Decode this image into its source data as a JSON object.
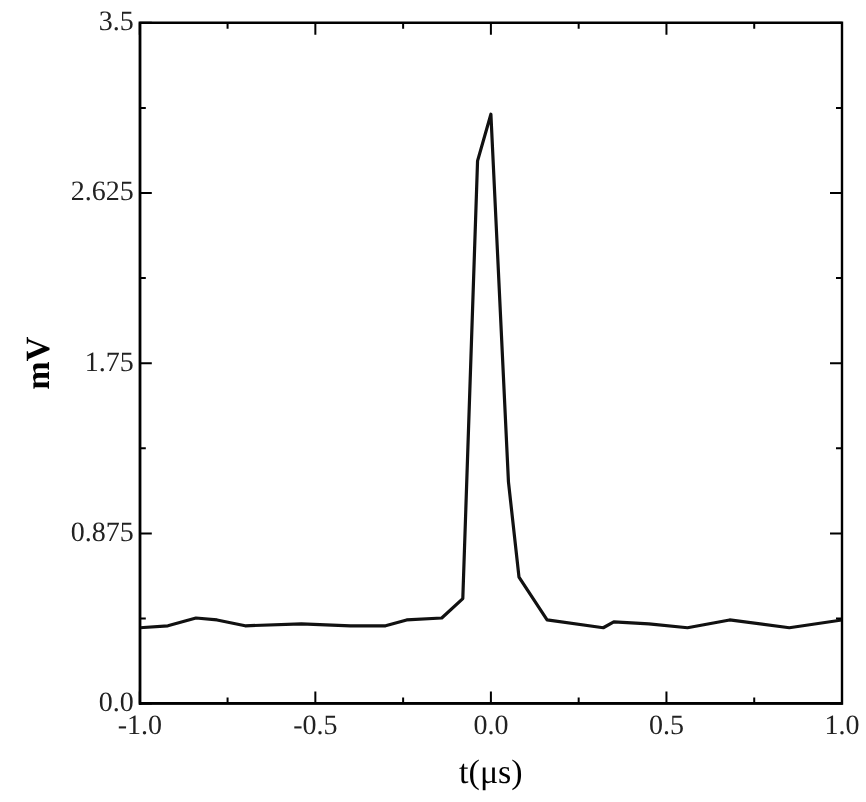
{
  "chart_data": {
    "type": "line",
    "xlabel": "t(μs)",
    "ylabel": "mV",
    "xlim": [
      -1,
      1
    ],
    "ylim": [
      0,
      3.5
    ],
    "xticks": [
      {
        "value": -1,
        "label": "-1.0"
      },
      {
        "value": -0.75,
        "label": null
      },
      {
        "value": -0.5,
        "label": "-0.5"
      },
      {
        "value": -0.25,
        "label": null
      },
      {
        "value": 0,
        "label": "0.0"
      },
      {
        "value": 0.25,
        "label": null
      },
      {
        "value": 0.5,
        "label": "0.5"
      },
      {
        "value": 0.75,
        "label": null
      },
      {
        "value": 1,
        "label": "1.0"
      }
    ],
    "yticks": [
      {
        "value": 0,
        "label": "0.0"
      },
      {
        "value": 0.4375,
        "label": null
      },
      0.875,
      {
        "value": 1.3125,
        "label": null
      },
      1.75,
      {
        "value": 2.1875,
        "label": null
      },
      2.625,
      {
        "value": 3.0625,
        "label": null
      },
      3.5
    ],
    "grid": false,
    "legend": false,
    "marker": "none",
    "line_style": "solid",
    "series": [
      {
        "color": "#111111",
        "x": [
          -1,
          -0.92,
          -0.84,
          -0.78,
          -0.7,
          -0.54,
          -0.4,
          -0.3,
          -0.24,
          -0.14,
          -0.08,
          -0.038,
          0,
          0.05,
          0.08,
          0.16,
          0.32,
          0.35,
          0.45,
          0.56,
          0.68,
          0.85,
          1
        ],
        "values": [
          0.39,
          0.4,
          0.44,
          0.43,
          0.4,
          0.41,
          0.4,
          0.4,
          0.43,
          0.44,
          0.54,
          2.79,
          3.03,
          1.14,
          0.65,
          0.43,
          0.39,
          0.42,
          0.41,
          0.39,
          0.43,
          0.39,
          0.43
        ]
      }
    ]
  }
}
